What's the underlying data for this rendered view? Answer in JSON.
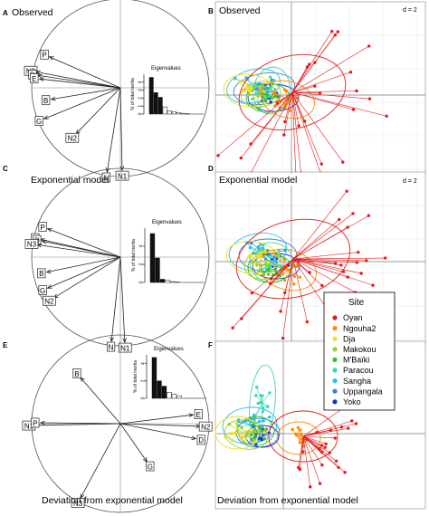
{
  "colors": {
    "Oyan": "#e41a1c",
    "Ngouha2": "#ff8c00",
    "Dja": "#f2df1b",
    "Makokou": "#9acd32",
    "M'Baïki": "#2bc62b",
    "Paracou": "#3cd6b0",
    "Sangha": "#22c4f0",
    "Uppangala": "#3a7fd5",
    "Yoko": "#1a2fc8"
  },
  "panels": {
    "A": {
      "letter": "A",
      "title": "Observed"
    },
    "B": {
      "letter": "B",
      "title": "Observed",
      "d": "d = 2"
    },
    "C": {
      "letter": "C",
      "title": "Exponential model"
    },
    "D": {
      "letter": "D",
      "title": "Exponential model",
      "d": "d = 2"
    },
    "E": {
      "letter": "E",
      "title": "Deviation from exponential model"
    },
    "F": {
      "letter": "F",
      "title": "Deviation from exponential model"
    }
  },
  "eig_axis": {
    "title": "Eigenvalues",
    "ylabel": "% of total inertia"
  },
  "legend": {
    "title": "Site",
    "items": [
      "Oyan",
      "Ngouha2",
      "Dja",
      "Makokou",
      "M'Baïki",
      "Paracou",
      "Sangha",
      "Uppangala",
      "Yoko"
    ]
  },
  "chart_data": [
    {
      "type": "scatter",
      "panel": "A",
      "title": "Observed",
      "kind": "correlation circle",
      "points": [
        {
          "label": "P",
          "x": -0.8,
          "y": 0.35
        },
        {
          "label": "N3",
          "x": -0.95,
          "y": 0.18
        },
        {
          "label": "D",
          "x": -0.93,
          "y": 0.14
        },
        {
          "label": "E",
          "x": -0.91,
          "y": 0.1
        },
        {
          "label": "B",
          "x": -0.78,
          "y": -0.13
        },
        {
          "label": "G",
          "x": -0.86,
          "y": -0.35
        },
        {
          "label": "N2",
          "x": -0.5,
          "y": -0.52
        },
        {
          "label": "N",
          "x": -0.15,
          "y": -0.95
        },
        {
          "label": "N1",
          "x": 0.02,
          "y": -0.93
        }
      ]
    },
    {
      "type": "bar",
      "panel": "A-inset",
      "title": "Eigenvalues",
      "ylabel": "% of total inertia",
      "values": [
        4.6,
        2.7,
        2.1,
        0.9,
        0.4,
        0.3,
        0.2,
        0.1,
        0.05
      ],
      "ylim": [
        0,
        5
      ],
      "ticks": [
        "0",
        "1",
        "2",
        "3",
        "4"
      ]
    },
    {
      "type": "scatter",
      "panel": "B",
      "title": "Observed",
      "kind": "PCA site scores",
      "grid_size": "d = 2",
      "series": [
        "Oyan",
        "Ngouha2",
        "Dja",
        "Makokou",
        "M'Baïki",
        "Paracou",
        "Sangha",
        "Uppangala",
        "Yoko"
      ]
    },
    {
      "type": "scatter",
      "panel": "C",
      "title": "Exponential model",
      "kind": "correlation circle",
      "points": [
        {
          "label": "P",
          "x": -0.82,
          "y": 0.32
        },
        {
          "label": "E",
          "x": -0.9,
          "y": 0.2
        },
        {
          "label": "D",
          "x": -0.88,
          "y": 0.18
        },
        {
          "label": "N3",
          "x": -0.94,
          "y": 0.14
        },
        {
          "label": "B",
          "x": -0.83,
          "y": -0.17
        },
        {
          "label": "G",
          "x": -0.82,
          "y": -0.35
        },
        {
          "label": "N2",
          "x": -0.75,
          "y": -0.46
        },
        {
          "label": "N",
          "x": -0.1,
          "y": -0.95
        },
        {
          "label": "N1",
          "x": 0.05,
          "y": -0.96
        }
      ]
    },
    {
      "type": "bar",
      "panel": "C-inset",
      "title": "Eigenvalues",
      "ylabel": "% of total inertia",
      "values": [
        5.4,
        2.7,
        0.35,
        0.25,
        0.1,
        0.05
      ],
      "ylim": [
        0,
        6
      ],
      "ticks": [
        "0",
        "2",
        "4"
      ]
    },
    {
      "type": "scatter",
      "panel": "D",
      "title": "Exponential model",
      "kind": "PCA site scores",
      "grid_size": "d = 2",
      "series": [
        "Oyan",
        "Ngouha2",
        "Dja",
        "Makokou",
        "M'Baïki",
        "Paracou",
        "Sangha",
        "Uppangala",
        "Yoko"
      ]
    },
    {
      "type": "scatter",
      "panel": "E",
      "title": "Deviation from exponential model",
      "kind": "correlation circle",
      "points": [
        {
          "label": "B",
          "x": -0.45,
          "y": 0.52
        },
        {
          "label": "E",
          "x": 0.82,
          "y": 0.1
        },
        {
          "label": "N2",
          "x": 0.9,
          "y": -0.03
        },
        {
          "label": "D",
          "x": 0.85,
          "y": -0.17
        },
        {
          "label": "N1",
          "x": -0.97,
          "y": -0.02
        },
        {
          "label": "P",
          "x": -0.9,
          "y": 0.01
        },
        {
          "label": "G",
          "x": 0.3,
          "y": -0.43
        },
        {
          "label": "N3",
          "x": -0.45,
          "y": -0.84
        }
      ]
    },
    {
      "type": "bar",
      "panel": "E-inset",
      "title": "Eigenvalues",
      "ylabel": "% of total inertia",
      "values": [
        4.7,
        2.0,
        1.4,
        0.7,
        0.5,
        0.3
      ],
      "ylim": [
        0,
        5
      ],
      "ticks": [
        "0",
        "2",
        "4"
      ]
    },
    {
      "type": "scatter",
      "panel": "F",
      "title": "Deviation from exponential model",
      "kind": "PCA site scores",
      "series": [
        "Oyan",
        "Ngouha2",
        "Dja",
        "Makokou",
        "M'Baïki",
        "Paracou",
        "Sangha",
        "Uppangala",
        "Yoko"
      ]
    }
  ]
}
